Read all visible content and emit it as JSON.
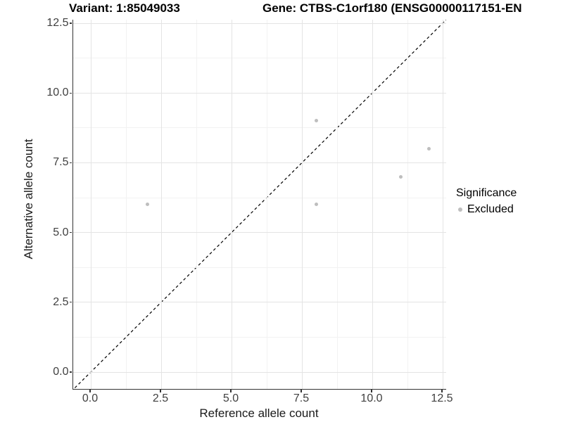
{
  "title": {
    "variant": "Variant: 1:85049033",
    "gene": "Gene: CTBS-C1orf180 (ENSG00000117151-EN"
  },
  "chart_data": {
    "type": "scatter",
    "title": "Variant: 1:85049033  Gene: CTBS-C1orf180 (ENSG00000117151-EN",
    "xlabel": "Reference allele count",
    "ylabel": "Alternative allele count",
    "xlim": [
      0,
      12.5
    ],
    "ylim": [
      0,
      12.5
    ],
    "x_ticks": [
      0,
      2.5,
      5,
      7.5,
      10,
      12.5
    ],
    "x_tick_labels": [
      "0.0",
      "2.5",
      "5.0",
      "7.5",
      "10.0",
      "12.5"
    ],
    "y_ticks": [
      0,
      2.5,
      5,
      7.5,
      10,
      12.5
    ],
    "y_tick_labels": [
      "0.0",
      "2.5",
      "5.0",
      "7.5",
      "10.0",
      "12.5"
    ],
    "minor_ticks": [
      1.25,
      3.75,
      6.25,
      8.75,
      11.25
    ],
    "grid": "on",
    "series": [
      {
        "name": "Excluded",
        "color": "#bebebe",
        "points": [
          {
            "x": 2,
            "y": 6
          },
          {
            "x": 8,
            "y": 6
          },
          {
            "x": 8,
            "y": 9
          },
          {
            "x": 11,
            "y": 7
          },
          {
            "x": 12,
            "y": 8
          }
        ]
      }
    ],
    "identity_line": {
      "equation": "y = x",
      "style": "dashed",
      "color": "#000000"
    },
    "legend_position": "right"
  },
  "legend": {
    "title": "Significance",
    "items": [
      {
        "label": "Excluded",
        "color": "#bebebe"
      }
    ]
  }
}
